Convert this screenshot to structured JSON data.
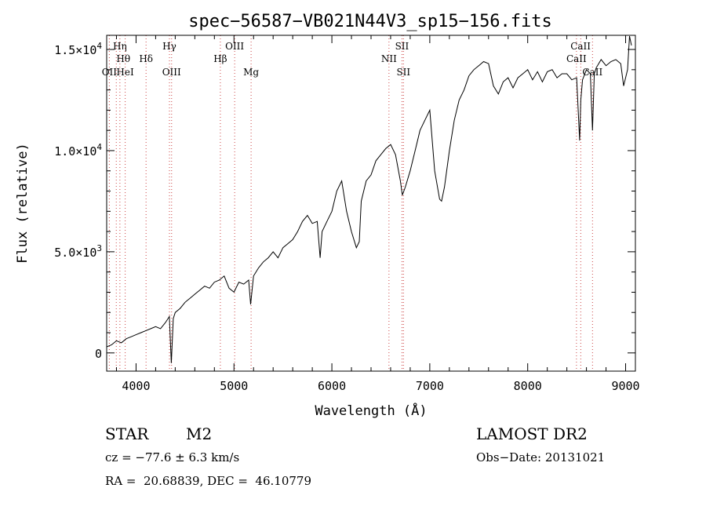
{
  "chart_data": {
    "type": "line",
    "title": "spec−56587−VB021N44V3_sp15−156.fits",
    "xlabel": "Wavelength (Å)",
    "ylabel": "Flux (relative)",
    "xlim": [
      3700,
      9100
    ],
    "ylim": [
      -900,
      15700
    ],
    "x_ticks": [
      4000,
      5000,
      6000,
      7000,
      8000,
      9000
    ],
    "x_tick_labels": [
      "4000",
      "5000",
      "6000",
      "7000",
      "8000",
      "9000"
    ],
    "y_ticks": [
      0,
      5000,
      10000,
      15000
    ],
    "y_tick_labels": [
      {
        "mantissa": "0",
        "exp": ""
      },
      {
        "mantissa": "5.0×10",
        "exp": "3"
      },
      {
        "mantissa": "1.0×10",
        "exp": "4"
      },
      {
        "mantissa": "1.5×10",
        "exp": "4"
      }
    ],
    "grid": false,
    "color": "#000000",
    "line_color": "#cc4444",
    "series": [
      {
        "x": [
          3700,
          3750,
          3800,
          3850,
          3900,
          3950,
          4000,
          4050,
          4100,
          4150,
          4200,
          4250,
          4300,
          4340,
          4360,
          4380,
          4400,
          4450,
          4500,
          4550,
          4600,
          4650,
          4700,
          4750,
          4800,
          4850,
          4900,
          4950,
          5000,
          5050,
          5100,
          5150,
          5170,
          5200,
          5250,
          5300,
          5350,
          5400,
          5450,
          5500,
          5550,
          5600,
          5650,
          5700,
          5750,
          5800,
          5850,
          5880,
          5900,
          5950,
          6000,
          6050,
          6100,
          6150,
          6200,
          6250,
          6280,
          6300,
          6350,
          6400,
          6450,
          6500,
          6550,
          6600,
          6650,
          6700,
          6720,
          6750,
          6800,
          6850,
          6900,
          6950,
          7000,
          7050,
          7100,
          7120,
          7150,
          7200,
          7250,
          7300,
          7350,
          7400,
          7450,
          7500,
          7550,
          7600,
          7650,
          7700,
          7750,
          7800,
          7850,
          7900,
          7950,
          8000,
          8050,
          8100,
          8150,
          8200,
          8250,
          8300,
          8350,
          8400,
          8450,
          8500,
          8530,
          8542,
          8560,
          8600,
          8640,
          8662,
          8680,
          8700,
          8750,
          8800,
          8850,
          8900,
          8950,
          8980,
          9000,
          9020,
          9040,
          9060
        ],
        "y": [
          300,
          400,
          600,
          500,
          700,
          800,
          900,
          1000,
          1100,
          1200,
          1300,
          1200,
          1500,
          1800,
          -500,
          1700,
          2000,
          2200,
          2500,
          2700,
          2900,
          3100,
          3300,
          3200,
          3500,
          3600,
          3800,
          3200,
          3000,
          3500,
          3400,
          3600,
          2400,
          3800,
          4200,
          4500,
          4700,
          5000,
          4700,
          5200,
          5400,
          5600,
          6000,
          6500,
          6800,
          6400,
          6500,
          4700,
          6000,
          6500,
          7000,
          8000,
          8500,
          7000,
          6000,
          5200,
          5500,
          7500,
          8500,
          8800,
          9500,
          9800,
          10100,
          10300,
          9800,
          8500,
          7800,
          8200,
          9000,
          10000,
          11000,
          11500,
          12000,
          9000,
          7600,
          7500,
          8200,
          10000,
          11500,
          12500,
          13000,
          13700,
          14000,
          14200,
          14400,
          14300,
          13200,
          12800,
          13400,
          13600,
          13100,
          13600,
          13800,
          14000,
          13500,
          13900,
          13400,
          13900,
          14000,
          13600,
          13800,
          13800,
          13500,
          13600,
          10500,
          12500,
          13500,
          14000,
          13800,
          11000,
          13800,
          14100,
          14500,
          14200,
          14400,
          14500,
          14300,
          13200,
          13600,
          14000,
          15700,
          15200
        ]
      }
    ],
    "lines": [
      {
        "x": 3727,
        "labels": [
          "OII"
        ]
      },
      {
        "x": 3798,
        "labels": []
      },
      {
        "x": 3835,
        "labels": [
          "Hη"
        ]
      },
      {
        "x": 3889,
        "labels": [
          "Hθ",
          "HeI"
        ]
      },
      {
        "x": 4102,
        "labels": [
          "Hδ"
        ]
      },
      {
        "x": 4341,
        "labels": [
          "Hγ"
        ]
      },
      {
        "x": 4363,
        "labels": [
          "OIII"
        ]
      },
      {
        "x": 4861,
        "labels": [
          "Hβ"
        ]
      },
      {
        "x": 5007,
        "labels": [
          "OIII"
        ]
      },
      {
        "x": 5175,
        "labels": [
          "Mg"
        ]
      },
      {
        "x": 6583,
        "labels": [
          "NII"
        ]
      },
      {
        "x": 6716,
        "labels": [
          "SII"
        ]
      },
      {
        "x": 6731,
        "labels": [
          "SII"
        ]
      },
      {
        "x": 8498,
        "labels": [
          "CaII"
        ]
      },
      {
        "x": 8542,
        "labels": [
          "CaII"
        ]
      },
      {
        "x": 8662,
        "labels": [
          "CaII"
        ]
      }
    ]
  },
  "info": {
    "object_class": "STAR",
    "subclass": "M2",
    "survey": "LAMOST DR2",
    "velocity": "cz = −77.6 ± 6.3 km/s",
    "obs_date": "Obs−Date: 20131021",
    "coords": "RA =  20.68839, DEC =  46.10779"
  }
}
